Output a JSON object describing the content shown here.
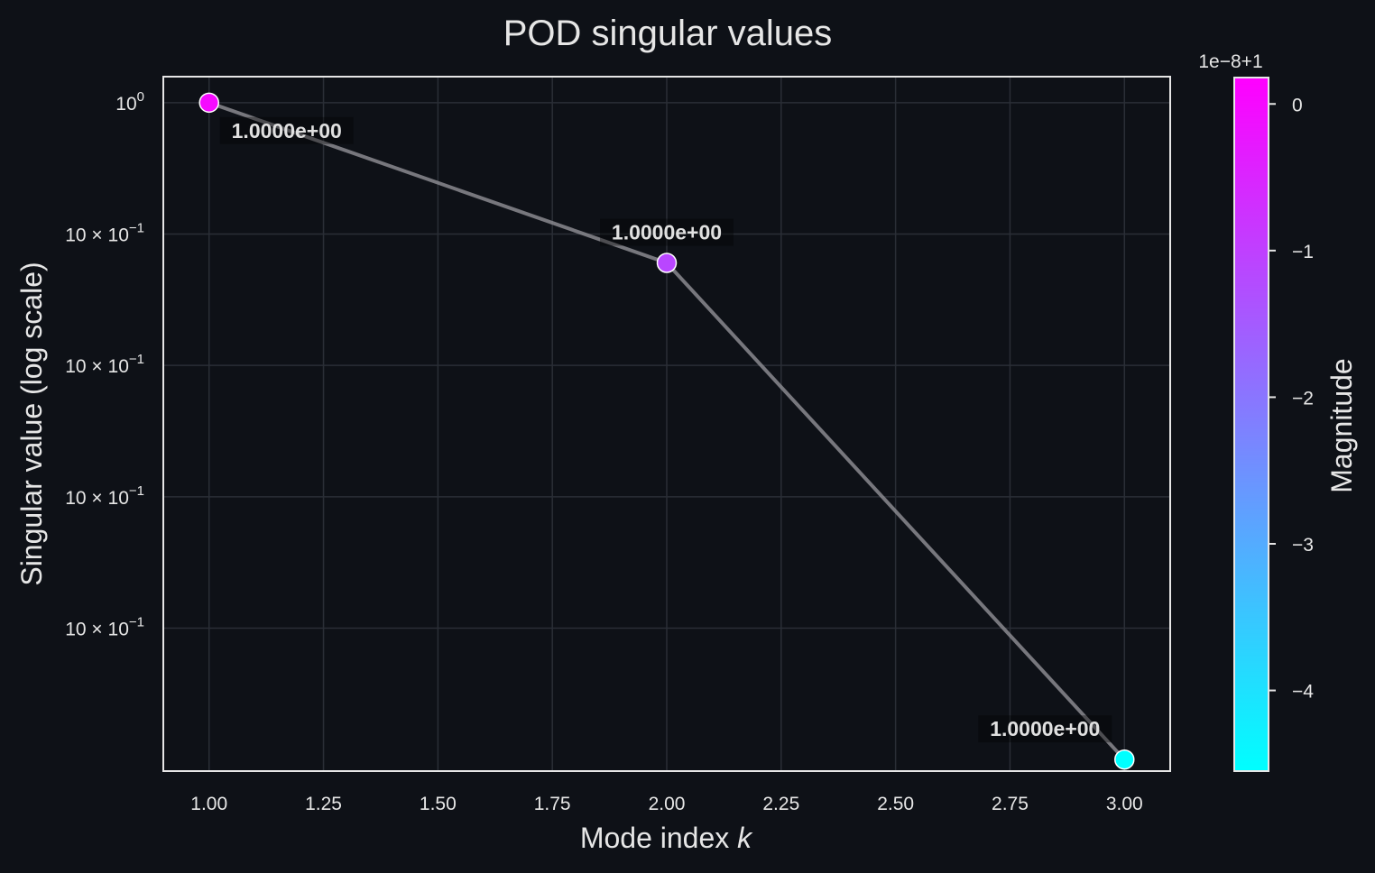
{
  "chart_data": {
    "type": "line",
    "title": "POD singular values",
    "xlabel_text": "Mode index ",
    "xlabel_var": "k",
    "ylabel": "Singular value (log scale)",
    "x": [
      1,
      2,
      3
    ],
    "values": [
      1.0,
      0.9999999889,
      0.9999999545
    ],
    "point_labels": [
      "1.0000e+00",
      "1.0000e+00",
      "1.0000e+00"
    ],
    "xlim": [
      0.9,
      3.1
    ],
    "xticks": [
      "1.00",
      "1.25",
      "1.50",
      "1.75",
      "2.00",
      "2.25",
      "2.50",
      "2.75",
      "3.00"
    ],
    "xtick_values": [
      1.0,
      1.25,
      1.5,
      1.75,
      2.0,
      2.25,
      2.5,
      2.75,
      3.0
    ],
    "ylim": [
      0.9999999537,
      1.0000000018
    ],
    "yticks": [
      {
        "value": 1.0,
        "base": "10",
        "exp": "0"
      },
      {
        "value": 0.9999999909,
        "base": "10 × 10",
        "exp": "−1"
      },
      {
        "value": 0.9999999818,
        "base": "10 × 10",
        "exp": "−1"
      },
      {
        "value": 0.9999999727,
        "base": "10 × 10",
        "exp": "−1"
      },
      {
        "value": 0.9999999636,
        "base": "10 × 10",
        "exp": "−1"
      }
    ],
    "scale": "log",
    "grid": true,
    "colorbar": {
      "label": "Magnitude",
      "offset_label": "1e−8+1",
      "range": [
        -4.55,
        0.18
      ],
      "ticks": [
        {
          "value": 0,
          "label": "0"
        },
        {
          "value": -1,
          "label": "−1"
        },
        {
          "value": -2,
          "label": "−2"
        },
        {
          "value": -3,
          "label": "−3"
        },
        {
          "value": -4,
          "label": "−4"
        }
      ],
      "colors": [
        "#00ffff",
        "#ff00ff"
      ]
    },
    "colors": {
      "background": "#0e1117",
      "axes": "#e6e6e6",
      "line": "#8a8a8f",
      "grid": "#2a2e36",
      "text": "#e6e6e6"
    }
  }
}
